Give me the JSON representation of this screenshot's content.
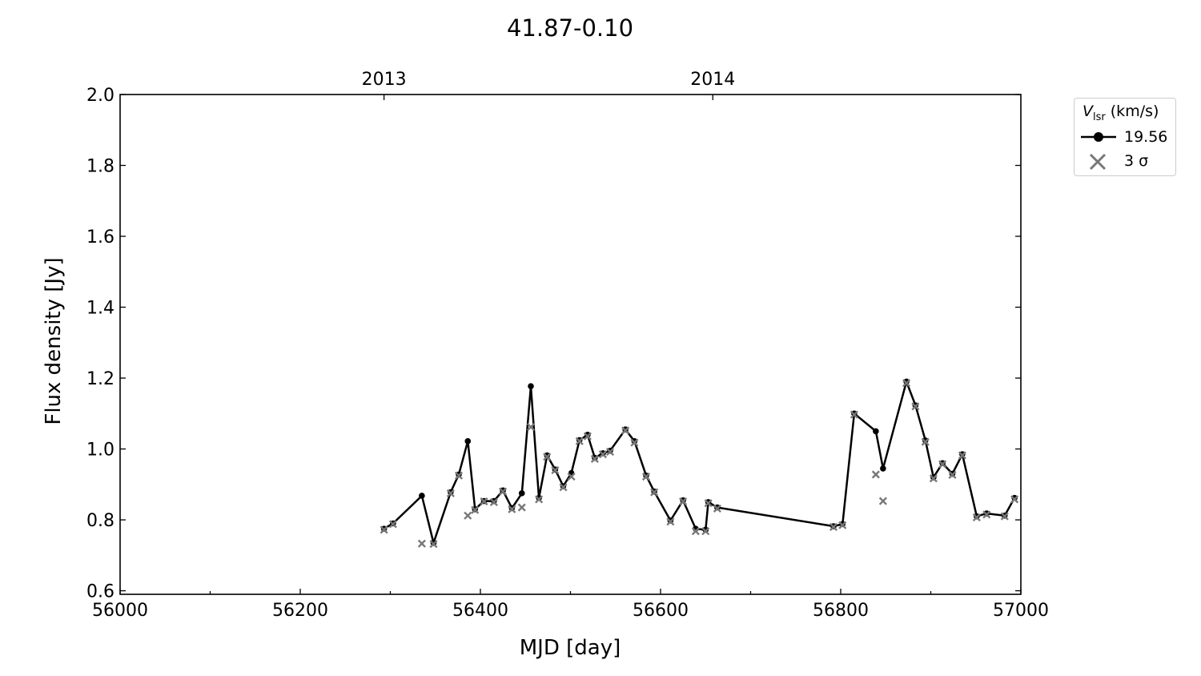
{
  "chart_data": {
    "type": "line",
    "title": "41.87-0.10",
    "xlabel": "MJD [day]",
    "ylabel": "Flux density [Jy]",
    "xlim": [
      56000,
      57000
    ],
    "ylim": [
      0.59,
      2.0
    ],
    "x_ticks": [
      56000,
      56200,
      56400,
      56600,
      56800,
      57000
    ],
    "x_tick_labels": [
      "56000",
      "56200",
      "56400",
      "56600",
      "56800",
      "57000"
    ],
    "y_ticks": [
      0.6,
      0.8,
      1.0,
      1.2,
      1.4,
      1.6,
      1.8,
      2.0
    ],
    "y_tick_labels": [
      "0.6",
      "0.8",
      "1.0",
      "1.2",
      "1.4",
      "1.6",
      "1.8",
      "2.0"
    ],
    "top_axis": {
      "ticks": [
        56293,
        56658
      ],
      "labels": [
        "2013",
        "2014"
      ]
    },
    "legend": {
      "title_symbol": "V",
      "title_subscript": "lsr",
      "title_unit": " (km/s)",
      "placement": "outside-top-right",
      "entries": [
        "19.56",
        "3 σ"
      ]
    },
    "colors": {
      "series": "#000000",
      "sigma": "#777777"
    },
    "series": [
      {
        "name": "19.56",
        "x": [
          56293,
          56303,
          56335,
          56348,
          56367,
          56376,
          56386,
          56394,
          56404,
          56415,
          56425,
          56435,
          56446,
          56456,
          56465,
          56474,
          56483,
          56492,
          56501,
          56510,
          56519,
          56527,
          56536,
          56544,
          56561,
          56571,
          56584,
          56593,
          56611,
          56625,
          56639,
          56650,
          56653,
          56663,
          56792,
          56802,
          56815,
          56839,
          56847,
          56873,
          56883,
          56894,
          56903,
          56913,
          56924,
          56935,
          56951,
          56962,
          56982,
          56993
        ],
        "y": [
          0.775,
          0.79,
          0.868,
          0.735,
          0.878,
          0.928,
          1.022,
          0.83,
          0.853,
          0.853,
          0.883,
          0.833,
          0.875,
          1.177,
          0.862,
          0.982,
          0.942,
          0.895,
          0.932,
          1.025,
          1.04,
          0.975,
          0.988,
          0.995,
          1.055,
          1.022,
          0.925,
          0.88,
          0.798,
          0.855,
          0.775,
          0.772,
          0.85,
          0.835,
          0.782,
          0.788,
          1.1,
          1.05,
          0.945,
          1.19,
          1.123,
          1.024,
          0.92,
          0.96,
          0.93,
          0.985,
          0.81,
          0.818,
          0.812,
          0.862
        ]
      }
    ],
    "sigma": {
      "name": "3 σ",
      "x": [
        56293,
        56303,
        56335,
        56348,
        56367,
        56376,
        56386,
        56394,
        56404,
        56415,
        56425,
        56435,
        56446,
        56456,
        56465,
        56474,
        56483,
        56492,
        56501,
        56510,
        56519,
        56527,
        56536,
        56544,
        56561,
        56571,
        56584,
        56593,
        56611,
        56625,
        56639,
        56650,
        56653,
        56663,
        56792,
        56802,
        56815,
        56839,
        56847,
        56873,
        56883,
        56894,
        56903,
        56913,
        56924,
        56935,
        56951,
        56962,
        56982,
        56993
      ],
      "y": [
        0.772,
        0.788,
        0.733,
        0.732,
        0.875,
        0.925,
        0.812,
        0.828,
        0.852,
        0.85,
        0.88,
        0.83,
        0.835,
        1.062,
        0.858,
        0.978,
        0.94,
        0.892,
        0.922,
        1.022,
        1.036,
        0.972,
        0.985,
        0.992,
        1.052,
        1.018,
        0.922,
        0.878,
        0.795,
        0.852,
        0.768,
        0.768,
        0.847,
        0.832,
        0.78,
        0.785,
        1.097,
        0.928,
        0.853,
        1.186,
        1.12,
        1.02,
        0.917,
        0.957,
        0.927,
        0.982,
        0.807,
        0.815,
        0.81,
        0.858
      ]
    }
  }
}
